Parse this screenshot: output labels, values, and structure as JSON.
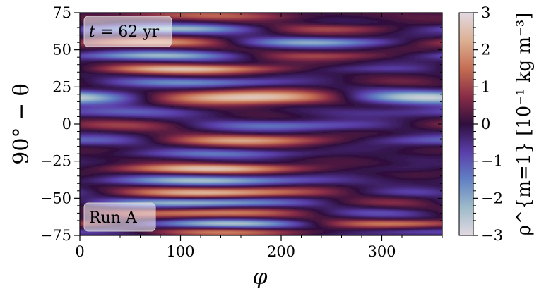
{
  "chart_data": {
    "type": "heatmap",
    "x": {
      "label": "φ",
      "lim": [
        0,
        360
      ],
      "ticks": [
        0,
        100,
        200,
        300
      ]
    },
    "y": {
      "label": "90° − θ",
      "lim": [
        -75,
        75
      ],
      "ticks": [
        -75,
        -50,
        -25,
        0,
        25,
        50,
        75
      ]
    },
    "colorbar": {
      "label": "ρ^{m=1} [10⁻¹ kg m⁻³]",
      "lim": [
        -3,
        3
      ],
      "ticks": [
        -3,
        -2,
        -1,
        0,
        1,
        2,
        3
      ],
      "colormap": "twilight_shifted",
      "colors": [
        "#e2d9e2",
        "#9ebbc9",
        "#6181c4",
        "#5a3eaa",
        "#2f0f3e",
        "#8a2d47",
        "#c56e53",
        "#dcb093",
        "#e2d9e2"
      ]
    },
    "annotations": [
      {
        "key": "time",
        "text_math": "t",
        "text_rest": " = 62 yr"
      },
      {
        "key": "run",
        "text": "Run A"
      }
    ],
    "bands": [
      {
        "lat": 73,
        "base": 0.6,
        "amp": 0.6,
        "phase": 120,
        "width": 3
      },
      {
        "lat": 64,
        "base": -0.6,
        "amp": 1.6,
        "phase": 260,
        "width": 3
      },
      {
        "lat": 55,
        "base": 0.0,
        "amp": 2.0,
        "phase": 60,
        "width": 3
      },
      {
        "lat": 46,
        "base": -0.5,
        "amp": 1.6,
        "phase": 250,
        "width": 3
      },
      {
        "lat": 37,
        "base": 0.8,
        "amp": 1.6,
        "phase": 110,
        "width": 3
      },
      {
        "lat": 28,
        "base": -0.6,
        "amp": 1.0,
        "phase": 300,
        "width": 3
      },
      {
        "lat": 18,
        "base": 0.2,
        "amp": 2.7,
        "phase": 165,
        "width": 4.5
      },
      {
        "lat": 8,
        "base": -0.5,
        "amp": 0.5,
        "phase": 200,
        "width": 3.5
      },
      {
        "lat": -1,
        "base": -0.3,
        "amp": 1.1,
        "phase": 30,
        "width": 3.5
      },
      {
        "lat": -11,
        "base": 0.4,
        "amp": 1.6,
        "phase": 170,
        "width": 3.5
      },
      {
        "lat": -20,
        "base": -0.5,
        "amp": 0.7,
        "phase": 320,
        "width": 3
      },
      {
        "lat": -30,
        "base": 1.0,
        "amp": 1.4,
        "phase": 130,
        "width": 3
      },
      {
        "lat": -38,
        "base": -1.1,
        "amp": 1.1,
        "phase": 310,
        "width": 3
      },
      {
        "lat": -46,
        "base": 0.9,
        "amp": 1.5,
        "phase": 140,
        "width": 3
      },
      {
        "lat": -53,
        "base": -0.9,
        "amp": 1.4,
        "phase": 300,
        "width": 2.8
      },
      {
        "lat": -60,
        "base": 0.6,
        "amp": 1.3,
        "phase": 120,
        "width": 2.8
      },
      {
        "lat": -67,
        "base": -0.3,
        "amp": 2.0,
        "phase": 320,
        "width": 2.5
      },
      {
        "lat": -73,
        "base": 0.3,
        "amp": 1.2,
        "phase": 150,
        "width": 2.2
      }
    ]
  }
}
